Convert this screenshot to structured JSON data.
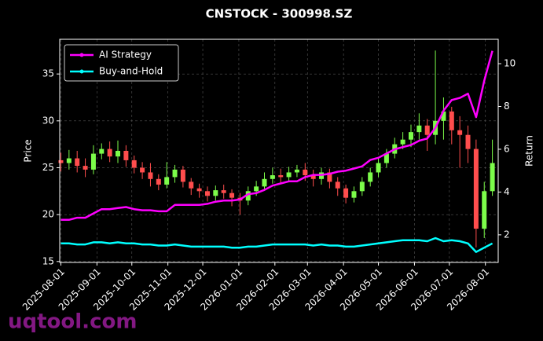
{
  "chart_data": {
    "type": "candlestick_with_returns",
    "title": "CNSTOCK - 300998.SZ",
    "watermark": "uqtool.com",
    "y_label": "Price",
    "y2_label": "Return",
    "legend": "upper left",
    "grid": true,
    "up_color": "#7cfc4a",
    "down_color": "#ff4d4d",
    "xlim": [
      "2025-07-31",
      "2026-08-12"
    ],
    "xticks": [
      "2025-08-01",
      "2025-09-01",
      "2025-10-01",
      "2025-11-01",
      "2025-12-01",
      "2026-01-01",
      "2026-02-01",
      "2026-03-01",
      "2026-04-01",
      "2026-05-01",
      "2026-06-01",
      "2026-07-01",
      "2026-08-01"
    ],
    "ylim": [
      14.9,
      38.7
    ],
    "yticks": [
      15,
      20,
      25,
      30,
      35
    ],
    "y2lim": [
      0.71,
      11.14
    ],
    "y2ticks": [
      2,
      4,
      6,
      8,
      10
    ],
    "x": [
      "2025-08-01",
      "2025-08-08",
      "2025-08-15",
      "2025-08-22",
      "2025-08-29",
      "2025-09-05",
      "2025-09-12",
      "2025-09-19",
      "2025-09-26",
      "2025-10-03",
      "2025-10-10",
      "2025-10-17",
      "2025-10-24",
      "2025-10-31",
      "2025-11-07",
      "2025-11-14",
      "2025-11-21",
      "2025-11-28",
      "2025-12-05",
      "2025-12-12",
      "2025-12-19",
      "2025-12-26",
      "2026-01-02",
      "2026-01-09",
      "2026-01-16",
      "2026-01-23",
      "2026-01-30",
      "2026-02-06",
      "2026-02-13",
      "2026-02-20",
      "2026-02-27",
      "2026-03-06",
      "2026-03-13",
      "2026-03-20",
      "2026-03-27",
      "2026-04-03",
      "2026-04-10",
      "2026-04-17",
      "2026-04-24",
      "2026-05-01",
      "2026-05-08",
      "2026-05-15",
      "2026-05-22",
      "2026-05-29",
      "2026-06-05",
      "2026-06-12",
      "2026-06-19",
      "2026-06-26",
      "2026-07-03",
      "2026-07-10",
      "2026-07-17",
      "2026-07-24",
      "2026-07-31",
      "2026-08-07"
    ],
    "open": [
      25.8,
      25.5,
      26.0,
      25.2,
      24.8,
      26.5,
      27.0,
      26.2,
      26.8,
      25.8,
      25.0,
      24.5,
      23.8,
      23.2,
      24.0,
      24.8,
      23.5,
      22.8,
      22.5,
      22.0,
      22.6,
      22.3,
      21.8,
      21.5,
      22.5,
      23.0,
      23.8,
      24.2,
      24.0,
      24.5,
      24.8,
      24.2,
      23.8,
      24.5,
      23.5,
      22.8,
      21.8,
      22.5,
      23.5,
      24.5,
      25.5,
      26.5,
      27.5,
      28.0,
      28.8,
      29.5,
      28.5,
      30.0,
      31.0,
      29.0,
      28.5,
      27.0,
      18.5,
      22.5
    ],
    "high": [
      26.6,
      26.9,
      26.8,
      26.0,
      27.4,
      27.6,
      27.8,
      27.9,
      27.4,
      26.3,
      25.6,
      25.5,
      24.3,
      25.6,
      25.3,
      25.2,
      23.9,
      23.3,
      23.0,
      23.1,
      23.2,
      22.7,
      22.3,
      23.0,
      23.6,
      24.5,
      25.0,
      24.9,
      25.1,
      25.3,
      25.5,
      24.8,
      25.0,
      24.9,
      24.0,
      23.2,
      23.0,
      24.0,
      25.0,
      26.0,
      27.0,
      28.2,
      28.8,
      29.6,
      30.8,
      30.2,
      37.5,
      32.5,
      31.5,
      30.5,
      29.5,
      28.0,
      23.5,
      28.0
    ],
    "low": [
      24.6,
      24.8,
      24.5,
      24.0,
      24.3,
      25.9,
      25.6,
      25.5,
      25.1,
      24.4,
      23.8,
      23.0,
      22.6,
      22.8,
      23.4,
      22.9,
      22.1,
      21.8,
      21.4,
      21.5,
      21.7,
      20.9,
      20.0,
      21.0,
      22.0,
      22.6,
      23.3,
      23.4,
      23.5,
      24.0,
      23.6,
      23.0,
      23.2,
      22.8,
      22.0,
      21.2,
      21.3,
      22.0,
      23.0,
      24.0,
      25.0,
      26.0,
      27.0,
      27.2,
      28.0,
      26.8,
      27.5,
      28.0,
      27.5,
      25.0,
      25.5,
      16.5,
      17.5,
      22.0
    ],
    "close": [
      25.5,
      26.0,
      25.2,
      24.8,
      26.5,
      27.0,
      26.2,
      26.8,
      25.8,
      25.0,
      24.5,
      23.8,
      23.2,
      24.0,
      24.8,
      23.5,
      22.8,
      22.5,
      22.0,
      22.6,
      22.3,
      21.8,
      21.5,
      22.5,
      23.0,
      23.8,
      24.2,
      24.0,
      24.5,
      24.8,
      24.2,
      23.8,
      24.5,
      23.5,
      22.8,
      21.8,
      22.5,
      23.5,
      24.5,
      25.5,
      26.5,
      27.5,
      28.0,
      28.8,
      29.5,
      28.5,
      30.0,
      31.0,
      29.0,
      28.5,
      27.0,
      18.5,
      22.5,
      25.5
    ],
    "series": [
      {
        "name": "AI Strategy",
        "color": "#ff00ff",
        "axis": "y2",
        "values": [
          2.7,
          2.7,
          2.8,
          2.8,
          3.0,
          3.2,
          3.2,
          3.25,
          3.3,
          3.2,
          3.15,
          3.15,
          3.1,
          3.1,
          3.4,
          3.4,
          3.4,
          3.4,
          3.45,
          3.55,
          3.6,
          3.6,
          3.65,
          3.9,
          3.95,
          4.1,
          4.3,
          4.4,
          4.5,
          4.5,
          4.7,
          4.8,
          4.8,
          4.85,
          4.95,
          5.0,
          5.1,
          5.2,
          5.5,
          5.6,
          5.8,
          6.0,
          6.1,
          6.2,
          6.4,
          6.5,
          7.0,
          7.8,
          8.3,
          8.4,
          8.6,
          7.5,
          9.2,
          10.6
        ]
      },
      {
        "name": "Buy-and-Hold",
        "color": "#00ffff",
        "axis": "y2",
        "values": [
          1.6,
          1.6,
          1.55,
          1.55,
          1.65,
          1.65,
          1.6,
          1.65,
          1.6,
          1.6,
          1.55,
          1.55,
          1.5,
          1.5,
          1.55,
          1.5,
          1.45,
          1.45,
          1.45,
          1.45,
          1.45,
          1.4,
          1.4,
          1.45,
          1.45,
          1.5,
          1.55,
          1.55,
          1.55,
          1.55,
          1.55,
          1.5,
          1.55,
          1.5,
          1.5,
          1.45,
          1.45,
          1.5,
          1.55,
          1.6,
          1.65,
          1.7,
          1.75,
          1.75,
          1.75,
          1.7,
          1.85,
          1.7,
          1.75,
          1.7,
          1.6,
          1.2,
          1.4,
          1.6
        ]
      }
    ]
  }
}
